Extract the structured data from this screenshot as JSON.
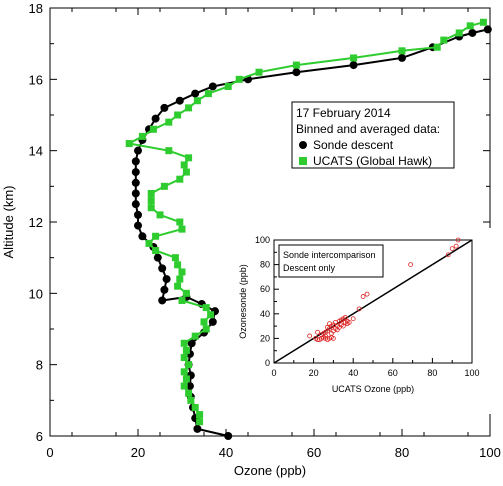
{
  "chart_data": [
    {
      "type": "line",
      "xlabel": "Ozone (ppb)",
      "ylabel": "Altitude (km)",
      "xlim": [
        0,
        100
      ],
      "ylim": [
        6,
        18
      ],
      "x_ticks": [
        0,
        20,
        40,
        60,
        80,
        100
      ],
      "y_ticks": [
        6,
        8,
        10,
        12,
        14,
        16,
        18
      ],
      "grid": false,
      "legend": {
        "placement": "center-right",
        "lines": [
          "17 February 2014",
          "Binned and averaged data:"
        ],
        "entries": [
          "Sonde descent",
          "UCATS (Global Hawk)"
        ]
      },
      "series": [
        {
          "name": "Sonde descent",
          "color": "#000000",
          "marker": "circle",
          "points": [
            [
              40.5,
              6.0
            ],
            [
              33.5,
              6.2
            ],
            [
              33.0,
              6.5
            ],
            [
              32.5,
              6.8
            ],
            [
              32.0,
              7.1
            ],
            [
              31.8,
              7.4
            ],
            [
              32.0,
              7.7
            ],
            [
              31.5,
              8.0
            ],
            [
              31.8,
              8.3
            ],
            [
              32.2,
              8.6
            ],
            [
              35.0,
              8.9
            ],
            [
              37.0,
              9.2
            ],
            [
              37.5,
              9.5
            ],
            [
              34.5,
              9.7
            ],
            [
              31.0,
              9.9
            ],
            [
              25.5,
              9.8
            ],
            [
              26.0,
              10.1
            ],
            [
              26.5,
              10.4
            ],
            [
              25.5,
              10.7
            ],
            [
              24.5,
              11.0
            ],
            [
              23.5,
              11.3
            ],
            [
              21.0,
              11.6
            ],
            [
              20.0,
              11.9
            ],
            [
              20.0,
              12.2
            ],
            [
              19.5,
              12.5
            ],
            [
              19.5,
              12.8
            ],
            [
              19.5,
              13.1
            ],
            [
              19.5,
              13.4
            ],
            [
              19.5,
              13.7
            ],
            [
              20.0,
              14.0
            ],
            [
              21.0,
              14.3
            ],
            [
              22.5,
              14.6
            ],
            [
              24.0,
              14.9
            ],
            [
              26.0,
              15.2
            ],
            [
              29.5,
              15.4
            ],
            [
              33.0,
              15.6
            ],
            [
              37.0,
              15.8
            ],
            [
              45.0,
              16.0
            ],
            [
              56.0,
              16.2
            ],
            [
              69.0,
              16.4
            ],
            [
              80.0,
              16.6
            ],
            [
              87.0,
              16.9
            ],
            [
              93.0,
              17.2
            ],
            [
              96.0,
              17.3
            ],
            [
              99.5,
              17.4
            ]
          ]
        },
        {
          "name": "UCATS (Global Hawk)",
          "color": "#2ecc2e",
          "marker": "square",
          "points": [
            [
              34.0,
              6.4
            ],
            [
              34.0,
              6.6
            ],
            [
              33.0,
              6.8
            ],
            [
              32.0,
              7.0
            ],
            [
              31.5,
              7.2
            ],
            [
              30.5,
              7.4
            ],
            [
              31.0,
              7.6
            ],
            [
              30.5,
              7.8
            ],
            [
              31.5,
              8.0
            ],
            [
              30.5,
              8.2
            ],
            [
              31.0,
              8.4
            ],
            [
              30.5,
              8.6
            ],
            [
              33.0,
              8.8
            ],
            [
              35.5,
              9.0
            ],
            [
              35.0,
              9.2
            ],
            [
              36.5,
              9.4
            ],
            [
              35.5,
              9.6
            ],
            [
              30.0,
              9.8
            ],
            [
              31.0,
              10.0
            ],
            [
              29.0,
              10.2
            ],
            [
              29.5,
              10.4
            ],
            [
              30.0,
              10.6
            ],
            [
              29.0,
              10.8
            ],
            [
              28.5,
              11.0
            ],
            [
              24.0,
              11.2
            ],
            [
              22.5,
              11.4
            ],
            [
              24.0,
              11.6
            ],
            [
              30.0,
              11.8
            ],
            [
              29.5,
              12.0
            ],
            [
              25.0,
              12.2
            ],
            [
              23.0,
              12.4
            ],
            [
              23.0,
              12.6
            ],
            [
              23.0,
              12.8
            ],
            [
              26.0,
              13.0
            ],
            [
              29.5,
              13.2
            ],
            [
              31.0,
              13.4
            ],
            [
              30.5,
              13.6
            ],
            [
              31.5,
              13.8
            ],
            [
              27.0,
              14.0
            ],
            [
              18.0,
              14.2
            ],
            [
              21.0,
              14.4
            ],
            [
              23.5,
              14.6
            ],
            [
              27.0,
              14.8
            ],
            [
              29.0,
              15.0
            ],
            [
              31.5,
              15.2
            ],
            [
              33.5,
              15.4
            ],
            [
              36.0,
              15.6
            ],
            [
              40.5,
              15.8
            ],
            [
              43.0,
              16.0
            ],
            [
              47.5,
              16.2
            ],
            [
              56.0,
              16.4
            ],
            [
              69.0,
              16.6
            ],
            [
              80.0,
              16.8
            ],
            [
              88.0,
              16.9
            ],
            [
              89.5,
              17.1
            ],
            [
              93.0,
              17.3
            ],
            [
              95.5,
              17.5
            ],
            [
              98.5,
              17.6
            ]
          ]
        }
      ]
    },
    {
      "type": "scatter",
      "xlabel": "UCATS Ozone (ppb)",
      "ylabel": "Ozonesonde (ppb)",
      "xlim": [
        0,
        100
      ],
      "ylim": [
        0,
        100
      ],
      "x_ticks": [
        0,
        20,
        40,
        60,
        80,
        100
      ],
      "y_ticks": [
        0,
        20,
        40,
        60,
        80,
        100
      ],
      "grid": false,
      "annotation": [
        "Sonde intercomparison",
        "Descent only"
      ],
      "points_color": "#dd2222",
      "line": {
        "color": "#000000",
        "points": [
          [
            0,
            0
          ],
          [
            100,
            100
          ]
        ]
      },
      "points": [
        [
          18,
          22
        ],
        [
          21,
          20
        ],
        [
          22,
          19
        ],
        [
          23,
          19
        ],
        [
          24,
          20
        ],
        [
          25,
          21
        ],
        [
          26,
          20
        ],
        [
          27,
          19
        ],
        [
          28,
          20
        ],
        [
          29,
          21
        ],
        [
          30,
          20
        ],
        [
          26,
          25
        ],
        [
          27,
          26
        ],
        [
          28,
          28
        ],
        [
          29,
          24
        ],
        [
          30,
          26
        ],
        [
          31,
          28
        ],
        [
          32,
          30
        ],
        [
          33,
          29
        ],
        [
          34,
          31
        ],
        [
          35,
          30
        ],
        [
          36,
          33
        ],
        [
          37,
          32
        ],
        [
          33,
          34
        ],
        [
          34,
          35
        ],
        [
          31,
          33
        ],
        [
          30,
          31
        ],
        [
          32,
          27
        ],
        [
          35,
          36
        ],
        [
          36,
          37
        ],
        [
          37,
          34
        ],
        [
          38,
          33
        ],
        [
          29,
          30
        ],
        [
          28,
          32
        ],
        [
          27,
          29
        ],
        [
          25,
          24
        ],
        [
          24,
          23
        ],
        [
          22,
          25
        ],
        [
          26,
          22
        ],
        [
          40,
          36
        ],
        [
          43,
          44
        ],
        [
          45,
          54
        ],
        [
          47,
          56
        ],
        [
          69,
          80
        ],
        [
          88,
          88
        ],
        [
          90,
          93
        ],
        [
          92,
          95
        ],
        [
          93,
          100
        ]
      ]
    }
  ]
}
